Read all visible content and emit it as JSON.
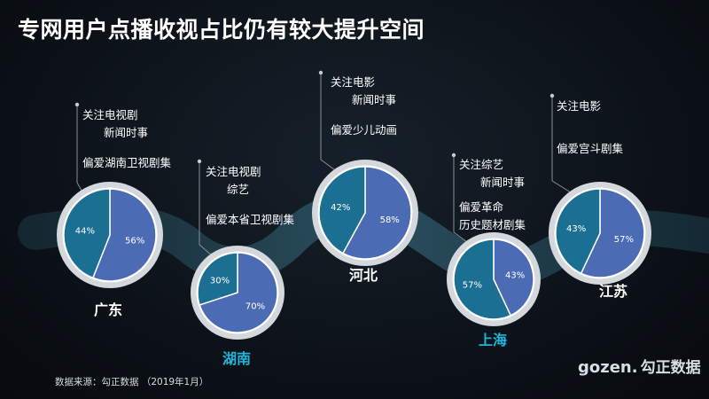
{
  "title": "专网用户点播收视占比仍有较大提升空间",
  "source": "数据来源：勾正数据 （2019年1月）",
  "logo": {
    "en": "gozen.",
    "cn": "勾正数据"
  },
  "colors": {
    "series_a": "#1a6f93",
    "series_b": "#4c6bb5",
    "ring": "#d4d8dc",
    "river": "#2e5666",
    "accent": "#1fb6d9"
  },
  "chart_data": {
    "type": "pie",
    "charts": [
      {
        "region": "广东",
        "values": [
          44,
          56
        ],
        "labels": [
          "44%",
          "56%"
        ],
        "notes": [
          "关注电视剧",
          "新闻时事",
          "偏爱湖南卫视剧集"
        ]
      },
      {
        "region": "湖南",
        "values": [
          30,
          70
        ],
        "labels": [
          "30%",
          "70%"
        ],
        "notes": [
          "关注电视剧",
          "综艺",
          "偏爱本省卫视剧集"
        ]
      },
      {
        "region": "河北",
        "values": [
          42,
          58
        ],
        "labels": [
          "42%",
          "58%"
        ],
        "notes": [
          "关注电影",
          "新闻时事",
          "偏爱少儿动画"
        ]
      },
      {
        "region": "上海",
        "values": [
          57,
          43
        ],
        "labels": [
          "57%",
          "43%"
        ],
        "notes": [
          "关注综艺",
          "新闻时事",
          "偏爱革命",
          "历史题材剧集"
        ]
      },
      {
        "region": "江苏",
        "values": [
          43,
          57
        ],
        "labels": [
          "43%",
          "57%"
        ],
        "notes": [
          "关注电影",
          "偏爱宫斗剧集"
        ]
      }
    ]
  }
}
